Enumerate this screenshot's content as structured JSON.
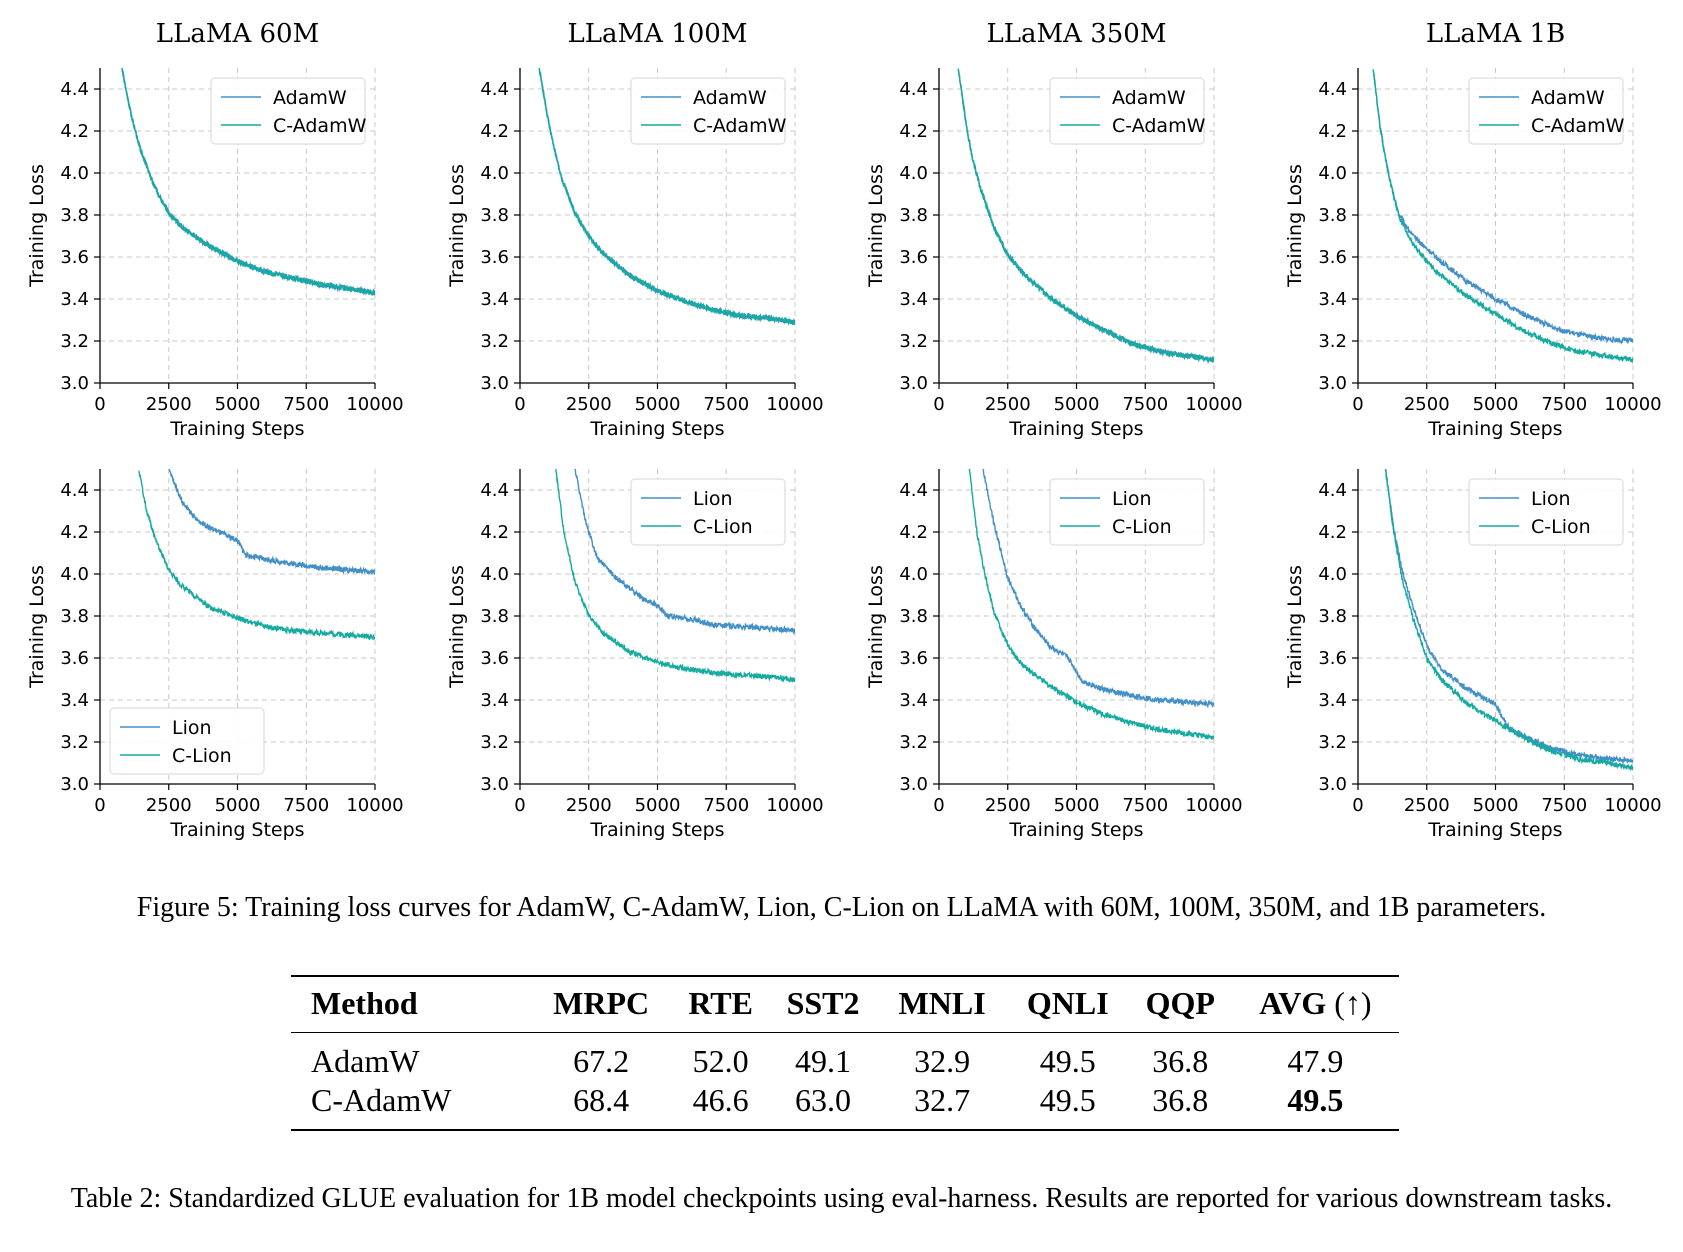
{
  "figure": {
    "caption": "Figure 5: Training loss curves for AdamW, C-AdamW, Lion, C-Lion on LLaMA with 60M, 100M, 350M, and 1B parameters."
  },
  "chart_data": [
    {
      "type": "line",
      "title": "LLaMA 60M",
      "xlabel": "Training Steps",
      "ylabel": "Training Loss",
      "xlim": [
        0,
        10000
      ],
      "ylim": [
        3.0,
        4.5
      ],
      "xticks": [
        "0",
        "2500",
        "5000",
        "7500",
        "10000"
      ],
      "yticks": [
        "3.0",
        "3.2",
        "3.4",
        "3.6",
        "3.8",
        "4.0",
        "4.2",
        "4.4"
      ],
      "grid": true,
      "legend": "top-right",
      "series": [
        {
          "name": "AdamW",
          "color": "#4390c8",
          "x": [
            800,
            1000,
            1200,
            1500,
            2000,
            2500,
            3000,
            4000,
            5000,
            6000,
            7000,
            8000,
            9000,
            10000
          ],
          "y": [
            4.5,
            4.36,
            4.24,
            4.1,
            3.93,
            3.81,
            3.74,
            3.65,
            3.58,
            3.53,
            3.5,
            3.47,
            3.45,
            3.43
          ]
        },
        {
          "name": "C-AdamW",
          "color": "#16aaa0",
          "x": [
            800,
            1000,
            1200,
            1500,
            2000,
            2500,
            3000,
            4000,
            5000,
            6000,
            7000,
            8000,
            9000,
            10000
          ],
          "y": [
            4.5,
            4.36,
            4.24,
            4.1,
            3.93,
            3.81,
            3.74,
            3.65,
            3.58,
            3.53,
            3.5,
            3.47,
            3.45,
            3.43
          ]
        }
      ]
    },
    {
      "type": "line",
      "title": "LLaMA 100M",
      "xlabel": "Training Steps",
      "ylabel": "Training Loss",
      "xlim": [
        0,
        10000
      ],
      "ylim": [
        3.0,
        4.5
      ],
      "xticks": [
        "0",
        "2500",
        "5000",
        "7500",
        "10000"
      ],
      "yticks": [
        "3.0",
        "3.2",
        "3.4",
        "3.6",
        "3.8",
        "4.0",
        "4.2",
        "4.4"
      ],
      "grid": true,
      "legend": "top-right",
      "series": [
        {
          "name": "AdamW",
          "color": "#4390c8",
          "x": [
            700,
            1000,
            1200,
            1500,
            2000,
            2500,
            3000,
            4000,
            5000,
            6000,
            7000,
            8000,
            9000,
            10000
          ],
          "y": [
            4.5,
            4.27,
            4.14,
            3.98,
            3.81,
            3.7,
            3.62,
            3.51,
            3.44,
            3.39,
            3.35,
            3.32,
            3.31,
            3.29
          ]
        },
        {
          "name": "C-AdamW",
          "color": "#16aaa0",
          "x": [
            700,
            1000,
            1200,
            1500,
            2000,
            2500,
            3000,
            4000,
            5000,
            6000,
            7000,
            8000,
            9000,
            10000
          ],
          "y": [
            4.5,
            4.27,
            4.14,
            3.98,
            3.81,
            3.7,
            3.62,
            3.51,
            3.44,
            3.39,
            3.35,
            3.32,
            3.31,
            3.29
          ]
        }
      ]
    },
    {
      "type": "line",
      "title": "LLaMA 350M",
      "xlabel": "Training Steps",
      "ylabel": "Training Loss",
      "xlim": [
        0,
        10000
      ],
      "ylim": [
        3.0,
        4.5
      ],
      "xticks": [
        "0",
        "2500",
        "5000",
        "7500",
        "10000"
      ],
      "yticks": [
        "3.0",
        "3.2",
        "3.4",
        "3.6",
        "3.8",
        "4.0",
        "4.2",
        "4.4"
      ],
      "grid": true,
      "legend": "top-right",
      "series": [
        {
          "name": "AdamW",
          "color": "#4390c8",
          "x": [
            700,
            1000,
            1200,
            1500,
            2000,
            2500,
            3000,
            4000,
            5000,
            6000,
            7000,
            8000,
            9000,
            10000
          ],
          "y": [
            4.5,
            4.22,
            4.08,
            3.93,
            3.74,
            3.61,
            3.53,
            3.41,
            3.32,
            3.25,
            3.19,
            3.15,
            3.13,
            3.11
          ]
        },
        {
          "name": "C-AdamW",
          "color": "#16aaa0",
          "x": [
            700,
            1000,
            1200,
            1500,
            2000,
            2500,
            3000,
            4000,
            5000,
            6000,
            7000,
            8000,
            9000,
            10000
          ],
          "y": [
            4.5,
            4.22,
            4.08,
            3.93,
            3.74,
            3.61,
            3.53,
            3.41,
            3.32,
            3.25,
            3.19,
            3.15,
            3.13,
            3.11
          ]
        }
      ]
    },
    {
      "type": "line",
      "title": "LLaMA 1B",
      "xlabel": "Training Steps",
      "ylabel": "Training Loss",
      "xlim": [
        0,
        10000
      ],
      "ylim": [
        3.0,
        4.5
      ],
      "xticks": [
        "0",
        "2500",
        "5000",
        "7500",
        "10000"
      ],
      "yticks": [
        "3.0",
        "3.2",
        "3.4",
        "3.6",
        "3.8",
        "4.0",
        "4.2",
        "4.4"
      ],
      "grid": true,
      "legend": "top-right",
      "series": [
        {
          "name": "AdamW",
          "color": "#4390c8",
          "x": [
            550,
            800,
            1000,
            1200,
            1500,
            2000,
            2500,
            3000,
            4000,
            5000,
            6000,
            7000,
            8000,
            9000,
            10000
          ],
          "y": [
            4.5,
            4.22,
            4.07,
            3.94,
            3.8,
            3.7,
            3.64,
            3.58,
            3.48,
            3.4,
            3.33,
            3.27,
            3.23,
            3.21,
            3.2
          ]
        },
        {
          "name": "C-AdamW",
          "color": "#16aaa0",
          "x": [
            550,
            800,
            1000,
            1200,
            1500,
            2000,
            2500,
            3000,
            4000,
            5000,
            6000,
            7000,
            8000,
            9000,
            10000
          ],
          "y": [
            4.5,
            4.22,
            4.07,
            3.94,
            3.79,
            3.66,
            3.58,
            3.51,
            3.41,
            3.33,
            3.25,
            3.19,
            3.15,
            3.13,
            3.11
          ]
        }
      ]
    },
    {
      "type": "line",
      "title": "",
      "xlabel": "Training Steps",
      "ylabel": "Training Loss",
      "xlim": [
        0,
        10000
      ],
      "ylim": [
        3.0,
        4.5
      ],
      "xticks": [
        "0",
        "2500",
        "5000",
        "7500",
        "10000"
      ],
      "yticks": [
        "3.0",
        "3.2",
        "3.4",
        "3.6",
        "3.8",
        "4.0",
        "4.2",
        "4.4"
      ],
      "grid": true,
      "legend": "bottom-left",
      "series": [
        {
          "name": "Lion",
          "color": "#4390c8",
          "x": [
            2500,
            3000,
            3500,
            4000,
            4500,
            5000,
            5300,
            6000,
            7000,
            8000,
            9000,
            10000
          ],
          "y": [
            4.5,
            4.34,
            4.26,
            4.22,
            4.19,
            4.16,
            4.09,
            4.07,
            4.05,
            4.03,
            4.02,
            4.01
          ]
        },
        {
          "name": "C-Lion",
          "color": "#16aaa0",
          "x": [
            1400,
            1700,
            2000,
            2500,
            3000,
            4000,
            5000,
            6000,
            7000,
            8000,
            9000,
            10000
          ],
          "y": [
            4.5,
            4.3,
            4.17,
            4.02,
            3.94,
            3.84,
            3.79,
            3.75,
            3.73,
            3.72,
            3.71,
            3.7
          ]
        }
      ]
    },
    {
      "type": "line",
      "title": "",
      "xlabel": "Training Steps",
      "ylabel": "Training Loss",
      "xlim": [
        0,
        10000
      ],
      "ylim": [
        3.0,
        4.5
      ],
      "xticks": [
        "0",
        "2500",
        "5000",
        "7500",
        "10000"
      ],
      "yticks": [
        "3.0",
        "3.2",
        "3.4",
        "3.6",
        "3.8",
        "4.0",
        "4.2",
        "4.4"
      ],
      "grid": true,
      "legend": "top-right",
      "series": [
        {
          "name": "Lion",
          "color": "#4390c8",
          "x": [
            2000,
            2400,
            2800,
            3500,
            4500,
            5000,
            5400,
            6000,
            7000,
            8000,
            9000,
            10000
          ],
          "y": [
            4.5,
            4.24,
            4.08,
            3.98,
            3.88,
            3.85,
            3.8,
            3.79,
            3.76,
            3.75,
            3.74,
            3.73
          ]
        },
        {
          "name": "C-Lion",
          "color": "#16aaa0",
          "x": [
            1300,
            1600,
            2000,
            2500,
            3000,
            4000,
            5000,
            6000,
            7000,
            8000,
            9000,
            10000
          ],
          "y": [
            4.5,
            4.2,
            3.96,
            3.8,
            3.72,
            3.63,
            3.58,
            3.55,
            3.53,
            3.52,
            3.51,
            3.5
          ]
        }
      ]
    },
    {
      "type": "line",
      "title": "",
      "xlabel": "Training Steps",
      "ylabel": "Training Loss",
      "xlim": [
        0,
        10000
      ],
      "ylim": [
        3.0,
        4.5
      ],
      "xticks": [
        "0",
        "2500",
        "5000",
        "7500",
        "10000"
      ],
      "yticks": [
        "3.0",
        "3.2",
        "3.4",
        "3.6",
        "3.8",
        "4.0",
        "4.2",
        "4.4"
      ],
      "grid": true,
      "legend": "top-right",
      "series": [
        {
          "name": "Lion",
          "color": "#4390c8",
          "x": [
            1600,
            2000,
            2500,
            3000,
            3500,
            4000,
            4700,
            5200,
            6000,
            7000,
            8000,
            9000,
            10000
          ],
          "y": [
            4.5,
            4.24,
            3.98,
            3.84,
            3.74,
            3.66,
            3.6,
            3.49,
            3.45,
            3.42,
            3.4,
            3.39,
            3.38
          ]
        },
        {
          "name": "C-Lion",
          "color": "#16aaa0",
          "x": [
            1100,
            1400,
            1700,
            2000,
            2500,
            3000,
            4000,
            5000,
            6000,
            7000,
            8000,
            9000,
            10000
          ],
          "y": [
            4.5,
            4.18,
            3.98,
            3.82,
            3.66,
            3.57,
            3.47,
            3.39,
            3.33,
            3.29,
            3.26,
            3.24,
            3.22
          ]
        }
      ]
    },
    {
      "type": "line",
      "title": "",
      "xlabel": "Training Steps",
      "ylabel": "Training Loss",
      "xlim": [
        0,
        10000
      ],
      "ylim": [
        3.0,
        4.5
      ],
      "xticks": [
        "0",
        "2500",
        "5000",
        "7500",
        "10000"
      ],
      "yticks": [
        "3.0",
        "3.2",
        "3.4",
        "3.6",
        "3.8",
        "4.0",
        "4.2",
        "4.4"
      ],
      "grid": true,
      "legend": "top-right",
      "series": [
        {
          "name": "Lion",
          "color": "#4390c8",
          "x": [
            1000,
            1300,
            1600,
            2000,
            2500,
            3000,
            4000,
            5000,
            5400,
            6000,
            7000,
            8000,
            9000,
            10000
          ],
          "y": [
            4.5,
            4.22,
            4.02,
            3.84,
            3.66,
            3.55,
            3.45,
            3.38,
            3.28,
            3.23,
            3.17,
            3.14,
            3.12,
            3.11
          ]
        },
        {
          "name": "C-Lion",
          "color": "#16aaa0",
          "x": [
            1000,
            1300,
            1600,
            2000,
            2500,
            3000,
            4000,
            5000,
            6000,
            7000,
            8000,
            9000,
            10000
          ],
          "y": [
            4.5,
            4.2,
            3.98,
            3.79,
            3.6,
            3.5,
            3.38,
            3.3,
            3.22,
            3.16,
            3.12,
            3.1,
            3.08
          ]
        }
      ]
    }
  ],
  "table": {
    "headers": [
      "Method",
      "MRPC",
      "RTE",
      "SST2",
      "MNLI",
      "QNLI",
      "QQP"
    ],
    "avg_header": "AVG",
    "avg_arrow": "(↑)",
    "rows": [
      {
        "method": "AdamW",
        "cells": [
          "67.2",
          "52.0",
          "49.1",
          "32.9",
          "49.5",
          "36.8"
        ],
        "avg": "47.9"
      },
      {
        "method": "C-AdamW",
        "cells": [
          "68.4",
          "46.6",
          "63.0",
          "32.7",
          "49.5",
          "36.8"
        ],
        "avg": "49.5"
      }
    ],
    "caption": "Table 2: Standardized GLUE evaluation for 1B model checkpoints using eval-harness. Results are reported for various downstream tasks."
  }
}
